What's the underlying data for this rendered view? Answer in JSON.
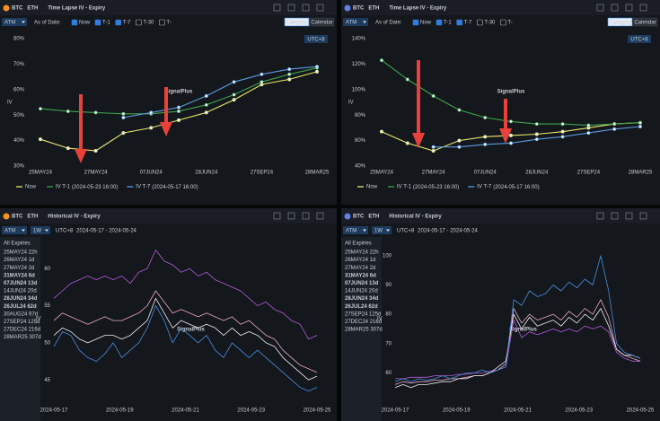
{
  "chart_data": [
    {
      "type": "line",
      "tabs": [
        "BTC",
        "ETH"
      ],
      "coin": "BTC",
      "title": "Time Lapse IV - Expiry",
      "selector": "ATM",
      "as_of_label": "As of Date:",
      "options": [
        {
          "label": "Now",
          "checked": true
        },
        {
          "label": "T-1",
          "checked": true
        },
        {
          "label": "T-7",
          "checked": true
        },
        {
          "label": "T-30",
          "checked": false
        },
        {
          "label": "T-",
          "checked": false
        }
      ],
      "view_buttons": [
        "Category",
        "Calendar"
      ],
      "timezone": "UTC+8",
      "ylabel": "IV",
      "watermark": "SignalPlus",
      "categories": [
        "25MAY24",
        null,
        "27MAY24",
        null,
        "07JUN24",
        null,
        "28JUN24",
        null,
        "27SEP24",
        null,
        "28MAR25"
      ],
      "ylim": [
        30,
        80
      ],
      "yticks": [
        {
          "value": 30,
          "label": "30%"
        },
        {
          "value": 40,
          "label": "40%"
        },
        {
          "value": 50,
          "label": "50%"
        },
        {
          "value": 60,
          "label": "60%"
        },
        {
          "value": 70,
          "label": "70%"
        },
        {
          "value": 80,
          "label": "80%"
        }
      ],
      "grid": false,
      "series": [
        {
          "name": "Now",
          "color": "#e9e86c",
          "values": [
            40.5,
            37,
            36,
            43,
            45,
            48,
            51,
            56,
            62,
            64,
            67
          ]
        },
        {
          "name": "IV T-1",
          "date": "(2024-05-23 16:00)",
          "color": "#3fa34d",
          "values": [
            52.5,
            51.5,
            51,
            50.5,
            50.5,
            51.5,
            54,
            58,
            63,
            66,
            68.5
          ]
        },
        {
          "name": "IV T-7",
          "date": "(2024-05-17 16:00)",
          "color": "#5b9be0",
          "values": [
            null,
            null,
            null,
            49,
            51,
            53,
            57.5,
            63,
            66,
            68,
            69
          ]
        }
      ]
    },
    {
      "type": "line",
      "tabs": [
        "BTC",
        "ETH"
      ],
      "coin": "ETH",
      "title": "Time Lapse IV - Expiry",
      "selector": "ATM",
      "as_of_label": "As of Date:",
      "options": [
        {
          "label": "Now",
          "checked": true
        },
        {
          "label": "T-1",
          "checked": true
        },
        {
          "label": "T-7",
          "checked": true
        },
        {
          "label": "T-30",
          "checked": false
        },
        {
          "label": "T-",
          "checked": false
        }
      ],
      "view_buttons": [
        "Category",
        "Calendar"
      ],
      "timezone": "UTC+8",
      "ylabel": "IV",
      "watermark": "SignalPlus",
      "categories": [
        "25MAY24",
        null,
        "27MAY24",
        null,
        "07JUN24",
        null,
        "28JUN24",
        null,
        "27SEP24",
        null,
        "28MAR25"
      ],
      "ylim": [
        40,
        140
      ],
      "yticks": [
        {
          "value": 40,
          "label": "40%"
        },
        {
          "value": 60,
          "label": "60%"
        },
        {
          "value": 80,
          "label": "80%"
        },
        {
          "value": 100,
          "label": "100%"
        },
        {
          "value": 120,
          "label": "120%"
        },
        {
          "value": 140,
          "label": "140%"
        }
      ],
      "grid": false,
      "series": [
        {
          "name": "Now",
          "color": "#e9e86c",
          "values": [
            67,
            58,
            52,
            60,
            63,
            64,
            65,
            67,
            70,
            73,
            74
          ]
        },
        {
          "name": "IV T-1",
          "date": "(2024-05-23 16:00)",
          "color": "#3fa34d",
          "values": [
            123,
            108,
            95,
            84,
            78,
            75,
            73,
            73,
            72,
            73,
            74
          ]
        },
        {
          "name": "IV T-7",
          "date": "(2024-05-17 16:00)",
          "color": "#5b9be0",
          "values": [
            null,
            null,
            55,
            55,
            57,
            58,
            61,
            63,
            66,
            69,
            71
          ]
        }
      ]
    },
    {
      "type": "line",
      "tabs": [
        "BTC",
        "ETH"
      ],
      "coin": "BTC",
      "title": "Historical IV - Expiry",
      "selector": "ATM",
      "period": "1W",
      "timezone": "UTC+8",
      "range": "2024-05-17 - 2024-05-24",
      "ylabel": "IV",
      "watermark": "SignalPlus",
      "legend": {
        "title": "All Expiries",
        "items": [
          {
            "name": "25MAY24 22h",
            "color": "#6b717b"
          },
          {
            "name": "26MAY24 1d",
            "color": "#6b717b"
          },
          {
            "name": "27MAY24 2d",
            "color": "#6b717b"
          },
          {
            "name": "31MAY24 6d",
            "color": "#4a8fe0"
          },
          {
            "name": "07JUN24 13d",
            "color": "#f0ecf5"
          },
          {
            "name": "14JUN24 20d",
            "color": "#6b717b"
          },
          {
            "name": "28JUN24 34d",
            "color": "#b05fd6"
          },
          {
            "name": "26JUL24 62d",
            "color": "#e6a8c8"
          },
          {
            "name": "30AUG24 97d",
            "color": "#6b717b"
          },
          {
            "name": "27SEP24 125d",
            "color": "#6b717b"
          },
          {
            "name": "27DEC24 216d",
            "color": "#6b717b"
          },
          {
            "name": "28MAR25 307d",
            "color": "#6b717b"
          }
        ]
      },
      "xlim": [
        "2024-05-17",
        "2024-05-25"
      ],
      "xticks": [
        "2024-05-17",
        "2024-05-19",
        "2024-05-21",
        "2024-05-23",
        "2024-05-25"
      ],
      "ylim": [
        42,
        64.5
      ],
      "yticks": [
        45,
        50,
        55,
        60
      ],
      "grid": false,
      "series": [
        {
          "color": "#b05fd6",
          "values": [
            56,
            57,
            58,
            58.5,
            59,
            58.5,
            59,
            58.5,
            59,
            58,
            59.5,
            60,
            62.5,
            61,
            60.5,
            59.5,
            60,
            59,
            59.5,
            58.5,
            58,
            57.5,
            57,
            56,
            55,
            55.5,
            54.5,
            54,
            53,
            52.5,
            50.5,
            51
          ]
        },
        {
          "color": "#e6a8c8",
          "values": [
            53,
            54,
            53.5,
            53,
            52.5,
            53,
            53.5,
            53,
            53,
            53.5,
            54,
            55,
            57,
            55.5,
            54,
            54.5,
            54,
            53.5,
            54,
            53.5,
            53,
            53.5,
            52.5,
            53,
            52,
            51,
            50.5,
            49,
            48,
            47,
            46.5,
            46
          ]
        },
        {
          "color": "#f0ecf5",
          "values": [
            51,
            52,
            51.5,
            50.5,
            50,
            50.5,
            51,
            51,
            50.5,
            51,
            52,
            53,
            56,
            54,
            52,
            53,
            52.5,
            52,
            52.5,
            52,
            51,
            52,
            51,
            51.5,
            51,
            50,
            49.5,
            48,
            47,
            46,
            45,
            45.5
          ]
        },
        {
          "color": "#4a8fe0",
          "values": [
            49.5,
            51.5,
            51,
            49,
            48,
            47.5,
            48.5,
            50,
            48,
            49,
            50,
            52,
            55,
            53,
            50,
            52,
            51,
            50,
            51,
            49,
            48,
            50,
            49,
            48,
            49,
            48,
            47,
            46,
            45,
            44,
            43.5,
            44
          ]
        }
      ]
    },
    {
      "type": "line",
      "tabs": [
        "BTC",
        "ETH"
      ],
      "coin": "ETH",
      "title": "Historical IV - Expiry",
      "selector": "ATM",
      "period": "1W",
      "timezone": "UTC+8",
      "range": "2024-05-17 - 2024-05-24",
      "ylabel": "IV",
      "watermark": "SignalPlus",
      "legend": {
        "title": "All Expiries",
        "items": [
          {
            "name": "25MAY24 22h",
            "color": "#6b717b"
          },
          {
            "name": "26MAY24 1d",
            "color": "#6b717b"
          },
          {
            "name": "27MAY24 2d",
            "color": "#6b717b"
          },
          {
            "name": "31MAY24 6d",
            "color": "#4a8fe0"
          },
          {
            "name": "07JUN24 13d",
            "color": "#f0ecf5"
          },
          {
            "name": "14JUN24 20d",
            "color": "#6b717b"
          },
          {
            "name": "28JUN24 34d",
            "color": "#b05fd6"
          },
          {
            "name": "26JUL24 62d",
            "color": "#e6a8c8"
          },
          {
            "name": "27SEP24 125d",
            "color": "#6b717b"
          },
          {
            "name": "27DEC24 216d",
            "color": "#6b717b"
          },
          {
            "name": "28MAR25 307d",
            "color": "#6b717b"
          }
        ]
      },
      "xlim": [
        "2024-05-17",
        "2024-05-25"
      ],
      "xticks": [
        "2024-05-17",
        "2024-05-19",
        "2024-05-21",
        "2024-05-23",
        "2024-05-25"
      ],
      "ylim": [
        50,
        107
      ],
      "yticks": [
        60,
        70,
        80,
        90,
        100
      ],
      "grid": false,
      "series": [
        {
          "color": "#b05fd6",
          "values": [
            58,
            58,
            58.5,
            58.5,
            58.5,
            59,
            59,
            59,
            59.5,
            59.5,
            60,
            60,
            60.5,
            61,
            62,
            78,
            72,
            74,
            73,
            74,
            75,
            74,
            75,
            74,
            76,
            75,
            76,
            74,
            67,
            65,
            64,
            64
          ]
        },
        {
          "color": "#e6a8c8",
          "values": [
            56,
            57,
            56.5,
            57,
            57,
            57.5,
            57.5,
            58,
            58,
            58.5,
            59,
            59,
            60,
            61,
            63,
            82,
            77,
            80,
            78,
            79,
            80,
            78,
            81,
            79,
            82,
            80,
            85,
            79,
            68,
            66,
            65,
            64
          ]
        },
        {
          "color": "#f0ecf5",
          "values": [
            55,
            56,
            55,
            56,
            56,
            56.5,
            57,
            57,
            58,
            58,
            59,
            59,
            60,
            62,
            64,
            80,
            75,
            79,
            76,
            77,
            78,
            76,
            79,
            77,
            80,
            78,
            82,
            76,
            68,
            66,
            66,
            65
          ]
        },
        {
          "color": "#4a8fe0",
          "values": [
            57,
            58,
            57,
            58,
            57.5,
            58,
            59,
            58,
            59,
            60,
            60,
            61,
            60,
            61,
            62,
            85,
            83,
            88,
            86,
            87,
            90,
            88,
            91,
            89,
            92,
            90,
            100,
            88,
            70,
            67,
            66,
            65
          ]
        }
      ]
    }
  ]
}
